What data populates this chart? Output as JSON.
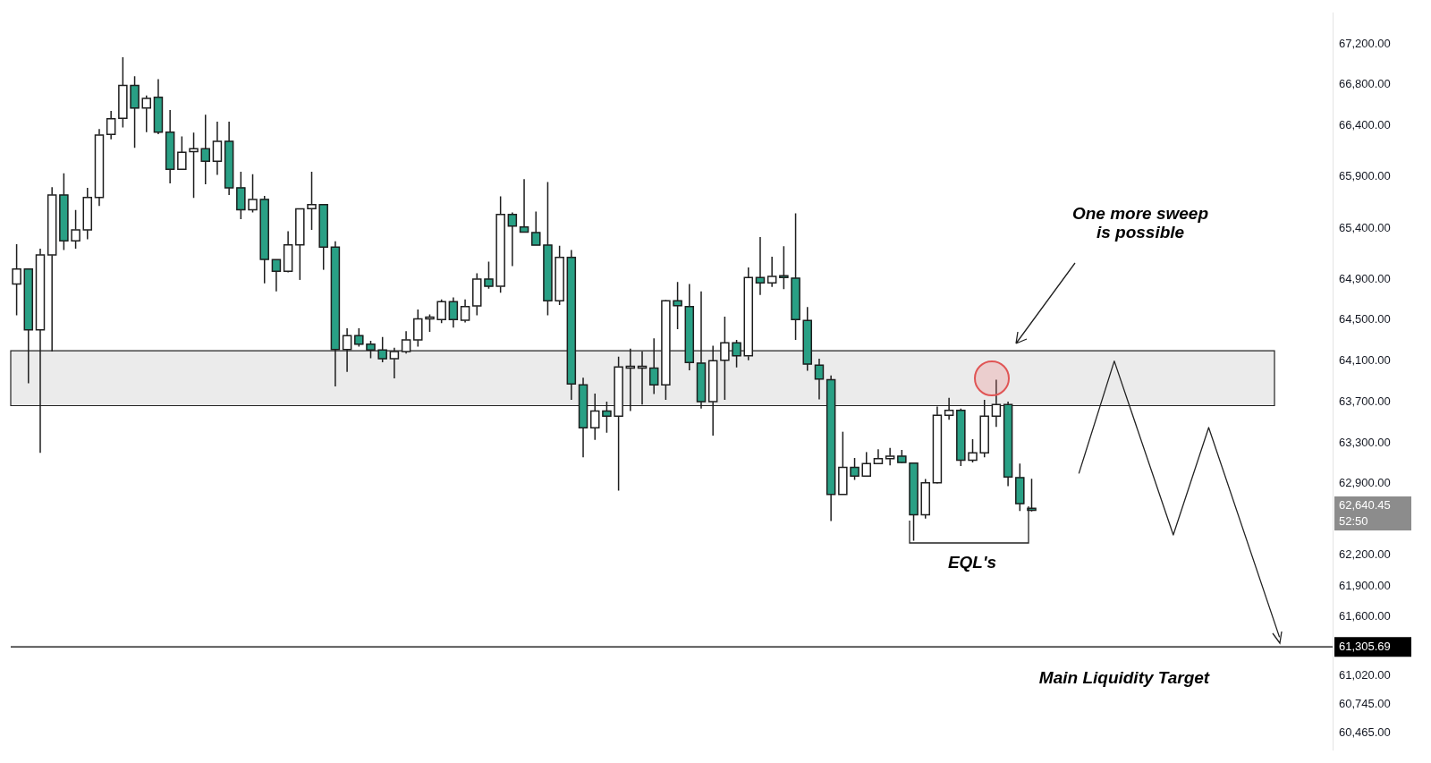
{
  "chart_data": {
    "type": "candlestick",
    "categories": [
      null,
      null,
      null,
      null,
      null,
      null,
      null,
      null,
      null,
      null,
      null,
      null,
      null,
      null,
      null,
      null,
      null,
      null,
      null,
      null,
      null,
      null,
      null,
      null,
      null,
      null,
      null,
      null,
      null,
      null,
      null,
      null,
      null,
      null,
      null,
      null,
      null,
      null,
      null,
      null,
      null,
      null,
      null,
      null,
      null,
      null,
      null,
      null,
      null,
      null,
      null,
      null,
      null,
      null,
      null,
      null,
      null,
      null,
      null,
      null,
      null,
      null,
      null,
      null,
      null,
      null,
      null,
      null,
      null,
      null,
      null,
      null,
      null,
      null,
      null,
      null,
      null,
      null,
      null,
      null,
      null,
      null,
      null,
      null,
      null,
      null,
      null,
      null,
      null,
      null,
      null,
      null,
      null,
      null,
      null,
      null,
      null,
      null,
      null,
      null,
      null,
      null,
      null,
      null,
      null,
      null,
      null,
      null,
      null,
      null,
      null,
      null
    ],
    "ohlc": [
      [
        64853,
        65242,
        64548,
        65000
      ],
      [
        65000,
        65000,
        63882,
        64406
      ],
      [
        64406,
        65199,
        63202,
        65137
      ],
      [
        65137,
        65800,
        64193,
        65723
      ],
      [
        65723,
        65936,
        65185,
        65276
      ],
      [
        65276,
        65576,
        65199,
        65383
      ],
      [
        65383,
        65794,
        65290,
        65700
      ],
      [
        65700,
        66369,
        65616,
        66310
      ],
      [
        66315,
        66545,
        66267,
        66468
      ],
      [
        66474,
        67069,
        66384,
        66794
      ],
      [
        66794,
        66885,
        66185,
        66573
      ],
      [
        66573,
        66695,
        66338,
        66667
      ],
      [
        66678,
        66856,
        66318,
        66338
      ],
      [
        66338,
        66553,
        65836,
        65975
      ],
      [
        65975,
        66296,
        65975,
        66140
      ],
      [
        66148,
        66332,
        65695,
        66176
      ],
      [
        66176,
        66508,
        65828,
        66054
      ],
      [
        66054,
        66440,
        65921,
        66247
      ],
      [
        66247,
        66440,
        65723,
        65794
      ],
      [
        65794,
        65950,
        65488,
        65579
      ],
      [
        65579,
        65927,
        65553,
        65680
      ],
      [
        65680,
        65714,
        64859,
        65094
      ],
      [
        65091,
        65091,
        64780,
        64978
      ],
      [
        64978,
        65369,
        64967,
        65236
      ],
      [
        65236,
        65587,
        64893,
        65587
      ],
      [
        65590,
        65950,
        65383,
        65630
      ],
      [
        65630,
        65630,
        64992,
        65213
      ],
      [
        65213,
        65270,
        63853,
        64213
      ],
      [
        64213,
        64420,
        63995,
        64349
      ],
      [
        64349,
        64420,
        64242,
        64264
      ],
      [
        64264,
        64298,
        64128,
        64208
      ],
      [
        64208,
        64335,
        64088,
        64122
      ],
      [
        64122,
        64230,
        63930,
        64193
      ],
      [
        64193,
        64392,
        64173,
        64307
      ],
      [
        64307,
        64604,
        64242,
        64513
      ],
      [
        64513,
        64556,
        64386,
        64513
      ],
      [
        64505,
        64703,
        64471,
        64680
      ],
      [
        64680,
        64723,
        64426,
        64505
      ],
      [
        64499,
        64703,
        64477,
        64633
      ],
      [
        64638,
        64958,
        64548,
        64901
      ],
      [
        64901,
        65072,
        64808,
        64831
      ],
      [
        64831,
        65709,
        64768,
        65533
      ],
      [
        65533,
        65553,
        65029,
        65420
      ],
      [
        65411,
        65879,
        65355,
        65360
      ],
      [
        65355,
        65562,
        65233,
        65233
      ],
      [
        65233,
        65851,
        64547,
        64689
      ],
      [
        64689,
        65227,
        64647,
        65114
      ],
      [
        65114,
        65185,
        63720,
        63876
      ],
      [
        63867,
        63938,
        63159,
        63448
      ],
      [
        63448,
        63783,
        63329,
        63612
      ],
      [
        63612,
        63703,
        63400,
        63561
      ],
      [
        63561,
        64142,
        62833,
        64043
      ],
      [
        64032,
        64222,
        63612,
        64043
      ],
      [
        64032,
        64193,
        63675,
        64032
      ],
      [
        64032,
        64321,
        63777,
        63867
      ],
      [
        63867,
        64695,
        63720,
        64689
      ],
      [
        64689,
        64873,
        64412,
        64641
      ],
      [
        64633,
        64853,
        64009,
        64086
      ],
      [
        64080,
        64780,
        63635,
        63703
      ],
      [
        63703,
        64250,
        63372,
        64103
      ],
      [
        64108,
        64533,
        63720,
        64278
      ],
      [
        64278,
        64307,
        64037,
        64151
      ],
      [
        64151,
        65015,
        64108,
        64916
      ],
      [
        64916,
        65312,
        64746,
        64865
      ],
      [
        64865,
        65120,
        64825,
        64927
      ],
      [
        64927,
        65222,
        64803,
        64916
      ],
      [
        64910,
        65544,
        64307,
        64505
      ],
      [
        64496,
        64627,
        64004,
        64071
      ],
      [
        64060,
        64122,
        63726,
        63924
      ],
      [
        63918,
        63958,
        62536,
        62797
      ],
      [
        62797,
        63409,
        62797,
        63060
      ],
      [
        63060,
        63153,
        62938,
        62975
      ],
      [
        62975,
        63210,
        62975,
        63097
      ],
      [
        63097,
        63238,
        63097,
        63145
      ],
      [
        63145,
        63250,
        63080,
        63170
      ],
      [
        63170,
        63230,
        63102,
        63108
      ],
      [
        63102,
        63102,
        62343,
        62598
      ],
      [
        62598,
        62947,
        62559,
        62910
      ],
      [
        62910,
        63655,
        62904,
        63570
      ],
      [
        63570,
        63740,
        63527,
        63618
      ],
      [
        63618,
        63635,
        63074,
        63131
      ],
      [
        63131,
        63335,
        63108,
        63202
      ],
      [
        63202,
        63720,
        63159,
        63561
      ],
      [
        63561,
        63918,
        63457,
        63675
      ],
      [
        63675,
        63703,
        62876,
        62967
      ],
      [
        62961,
        63097,
        62635,
        62706
      ],
      [
        62660,
        62950,
        62630,
        62640.45
      ],
      null,
      null,
      null,
      null,
      null,
      null,
      null,
      null,
      null,
      null,
      null,
      null,
      null,
      null,
      null,
      null,
      null,
      null,
      null,
      null,
      null,
      null,
      null,
      null,
      null
    ],
    "colors": [
      "#ffffff",
      "#29a085",
      "#ffffff",
      "#ffffff",
      "#29a085",
      "#ffffff",
      "#ffffff",
      "#ffffff",
      "#ffffff",
      "#ffffff",
      "#29a085",
      "#ffffff",
      "#29a085",
      "#29a085",
      "#ffffff",
      "#ffffff",
      "#29a085",
      "#ffffff",
      "#29a085",
      "#29a085",
      "#ffffff",
      "#29a085",
      "#29a085",
      "#ffffff",
      "#ffffff",
      "#ffffff",
      "#29a085",
      "#29a085",
      "#ffffff",
      "#29a085",
      "#29a085",
      "#29a085",
      "#ffffff",
      "#ffffff",
      "#ffffff",
      "#ffffff",
      "#ffffff",
      "#29a085",
      "#ffffff",
      "#ffffff",
      "#29a085",
      "#ffffff",
      "#29a085",
      "#29a085",
      "#29a085",
      "#29a085",
      "#ffffff",
      "#29a085",
      "#29a085",
      "#ffffff",
      "#29a085",
      "#ffffff",
      "#ffffff",
      "#ffffff",
      "#29a085",
      "#ffffff",
      "#29a085",
      "#29a085",
      "#29a085",
      "#ffffff",
      "#ffffff",
      "#29a085",
      "#ffffff",
      "#29a085",
      "#ffffff",
      "#29a085",
      "#29a085",
      "#29a085",
      "#29a085",
      "#29a085",
      "#ffffff",
      "#29a085",
      "#ffffff",
      "#ffffff",
      "#ffffff",
      "#29a085",
      "#29a085",
      "#ffffff",
      "#ffffff",
      "#ffffff",
      "#29a085",
      "#ffffff",
      "#ffffff",
      "#ffffff",
      "#29a085",
      "#29a085",
      "#29a085",
      null,
      null,
      null,
      null,
      null,
      null,
      null,
      null,
      null,
      null,
      null,
      null,
      null,
      null,
      null,
      null,
      null,
      null,
      null,
      null,
      null,
      null,
      null,
      null,
      null
    ],
    "ylim": [
      60300,
      67500
    ],
    "yticks": [
      {
        "value": 67200,
        "label": "67,200.00"
      },
      {
        "value": 66800,
        "label": "66,800.00"
      },
      {
        "value": 66400,
        "label": "66,400.00"
      },
      {
        "value": 65900,
        "label": "65,900.00"
      },
      {
        "value": 65400,
        "label": "65,400.00"
      },
      {
        "value": 64900,
        "label": "64,900.00"
      },
      {
        "value": 64500,
        "label": "64,500.00"
      },
      {
        "value": 64100,
        "label": "64,100.00"
      },
      {
        "value": 63700,
        "label": "63,700.00"
      },
      {
        "value": 63300,
        "label": "63,300.00"
      },
      {
        "value": 62900,
        "label": "62,900.00"
      },
      {
        "value": 62200,
        "label": "62,200.00"
      },
      {
        "value": 61900,
        "label": "61,900.00"
      },
      {
        "value": 61600,
        "label": "61,600.00"
      },
      {
        "value": 61020,
        "label": "61,020.00"
      },
      {
        "value": 60745,
        "label": "60,745.00"
      },
      {
        "value": 60465,
        "label": "60,465.00"
      }
    ],
    "series": [
      {
        "type": "line",
        "color": "#222222",
        "marker": "none",
        "line_style": "solid",
        "values": [
          null,
          null,
          null,
          null,
          null,
          null,
          null,
          null,
          null,
          null,
          null,
          null,
          null,
          null,
          null,
          null,
          null,
          null,
          null,
          null,
          null,
          null,
          null,
          null,
          null,
          null,
          null,
          null,
          null,
          null,
          null,
          null,
          null,
          null,
          null,
          null,
          null,
          null,
          null,
          null,
          null,
          null,
          null,
          null,
          null,
          null,
          null,
          null,
          null,
          null,
          null,
          null,
          null,
          null,
          null,
          null,
          null,
          null,
          null,
          null,
          null,
          null,
          null,
          null,
          null,
          null,
          null,
          null,
          null,
          null,
          null,
          null,
          null,
          null,
          null,
          null,
          null,
          null,
          null,
          null,
          null,
          null,
          null,
          null,
          null,
          null,
          null,
          null,
          null,
          null,
          63000,
          null,
          null,
          64100,
          null,
          null,
          null,
          null,
          62400,
          null,
          null,
          63450,
          null,
          null,
          null,
          null,
          null,
          61400,
          null,
          null,
          null,
          null
        ]
      }
    ],
    "tick_labels": "y",
    "bands": [
      {
        "axis": "y",
        "from": 63664,
        "to": 64200,
        "color": "#ebebeb"
      }
    ],
    "ref_lines": [
      {
        "axis": "y",
        "value": 61305.69,
        "label": "61,305.69",
        "color": "#000000"
      }
    ],
    "annotations": [
      "62,640.45",
      "52:50",
      "One more sweep is possible",
      "EQL's",
      "Main Liquidity Target"
    ]
  }
}
